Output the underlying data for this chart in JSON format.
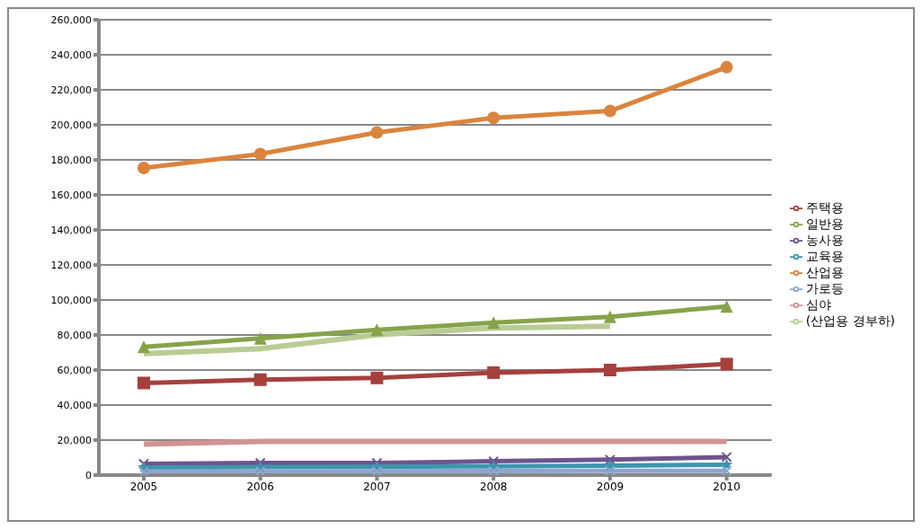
{
  "chart_data": {
    "type": "line",
    "categories": [
      "2005",
      "2006",
      "2007",
      "2008",
      "2009",
      "2010"
    ],
    "series": [
      {
        "name": "주택용",
        "color": "#a5403d",
        "marker": "square",
        "values": [
          52600,
          54500,
          55500,
          58500,
          60000,
          63400
        ]
      },
      {
        "name": "일반용",
        "color": "#86a34a",
        "marker": "triangle",
        "values": [
          73200,
          78100,
          83000,
          87000,
          90400,
          96300
        ]
      },
      {
        "name": "농사용",
        "color": "#6e548d",
        "marker": "cross",
        "values": [
          6400,
          6900,
          6900,
          7900,
          8800,
          10300
        ]
      },
      {
        "name": "교육용",
        "color": "#3d96ae",
        "marker": "star",
        "values": [
          4400,
          4600,
          4800,
          5000,
          5400,
          5900
        ]
      },
      {
        "name": "산업용",
        "color": "#db843d",
        "marker": "circle",
        "values": [
          175400,
          183300,
          195600,
          204000,
          207900,
          232900
        ]
      },
      {
        "name": "가로등",
        "color": "#8ea6ce",
        "marker": "cross",
        "values": [
          2000,
          2100,
          2200,
          2300,
          2400,
          2500
        ]
      },
      {
        "name": "심야",
        "color": "#d19392",
        "marker": "none",
        "values": [
          17700,
          19200,
          19200,
          19200,
          19200,
          19200
        ]
      },
      {
        "name": "(산업용 경부하)",
        "color": "#b8cc94",
        "marker": "none",
        "values": [
          69300,
          72200,
          80100,
          84000,
          85000,
          null
        ]
      }
    ],
    "ylim": [
      0,
      260000
    ],
    "yticks": [
      0,
      {
        "value": 20000,
        "label": "20,000"
      },
      {
        "value": 40000,
        "label": "40,000"
      },
      {
        "value": 60000,
        "label": "60,000"
      },
      {
        "value": 80000,
        "label": "80,000"
      },
      {
        "value": 100000,
        "label": "100,000"
      },
      {
        "value": 120000,
        "label": "120,000"
      },
      {
        "value": 140000,
        "label": "140,000"
      },
      {
        "value": 160000,
        "label": "160,000"
      },
      {
        "value": 180000,
        "label": "180,000"
      },
      {
        "value": 200000,
        "label": "200,000"
      },
      {
        "value": 220000,
        "label": "220,000"
      },
      {
        "value": 240000,
        "label": "240,000"
      },
      {
        "value": 260000,
        "label": "260,000"
      }
    ],
    "grid": "y",
    "legend": "right",
    "line_style": "solid"
  }
}
